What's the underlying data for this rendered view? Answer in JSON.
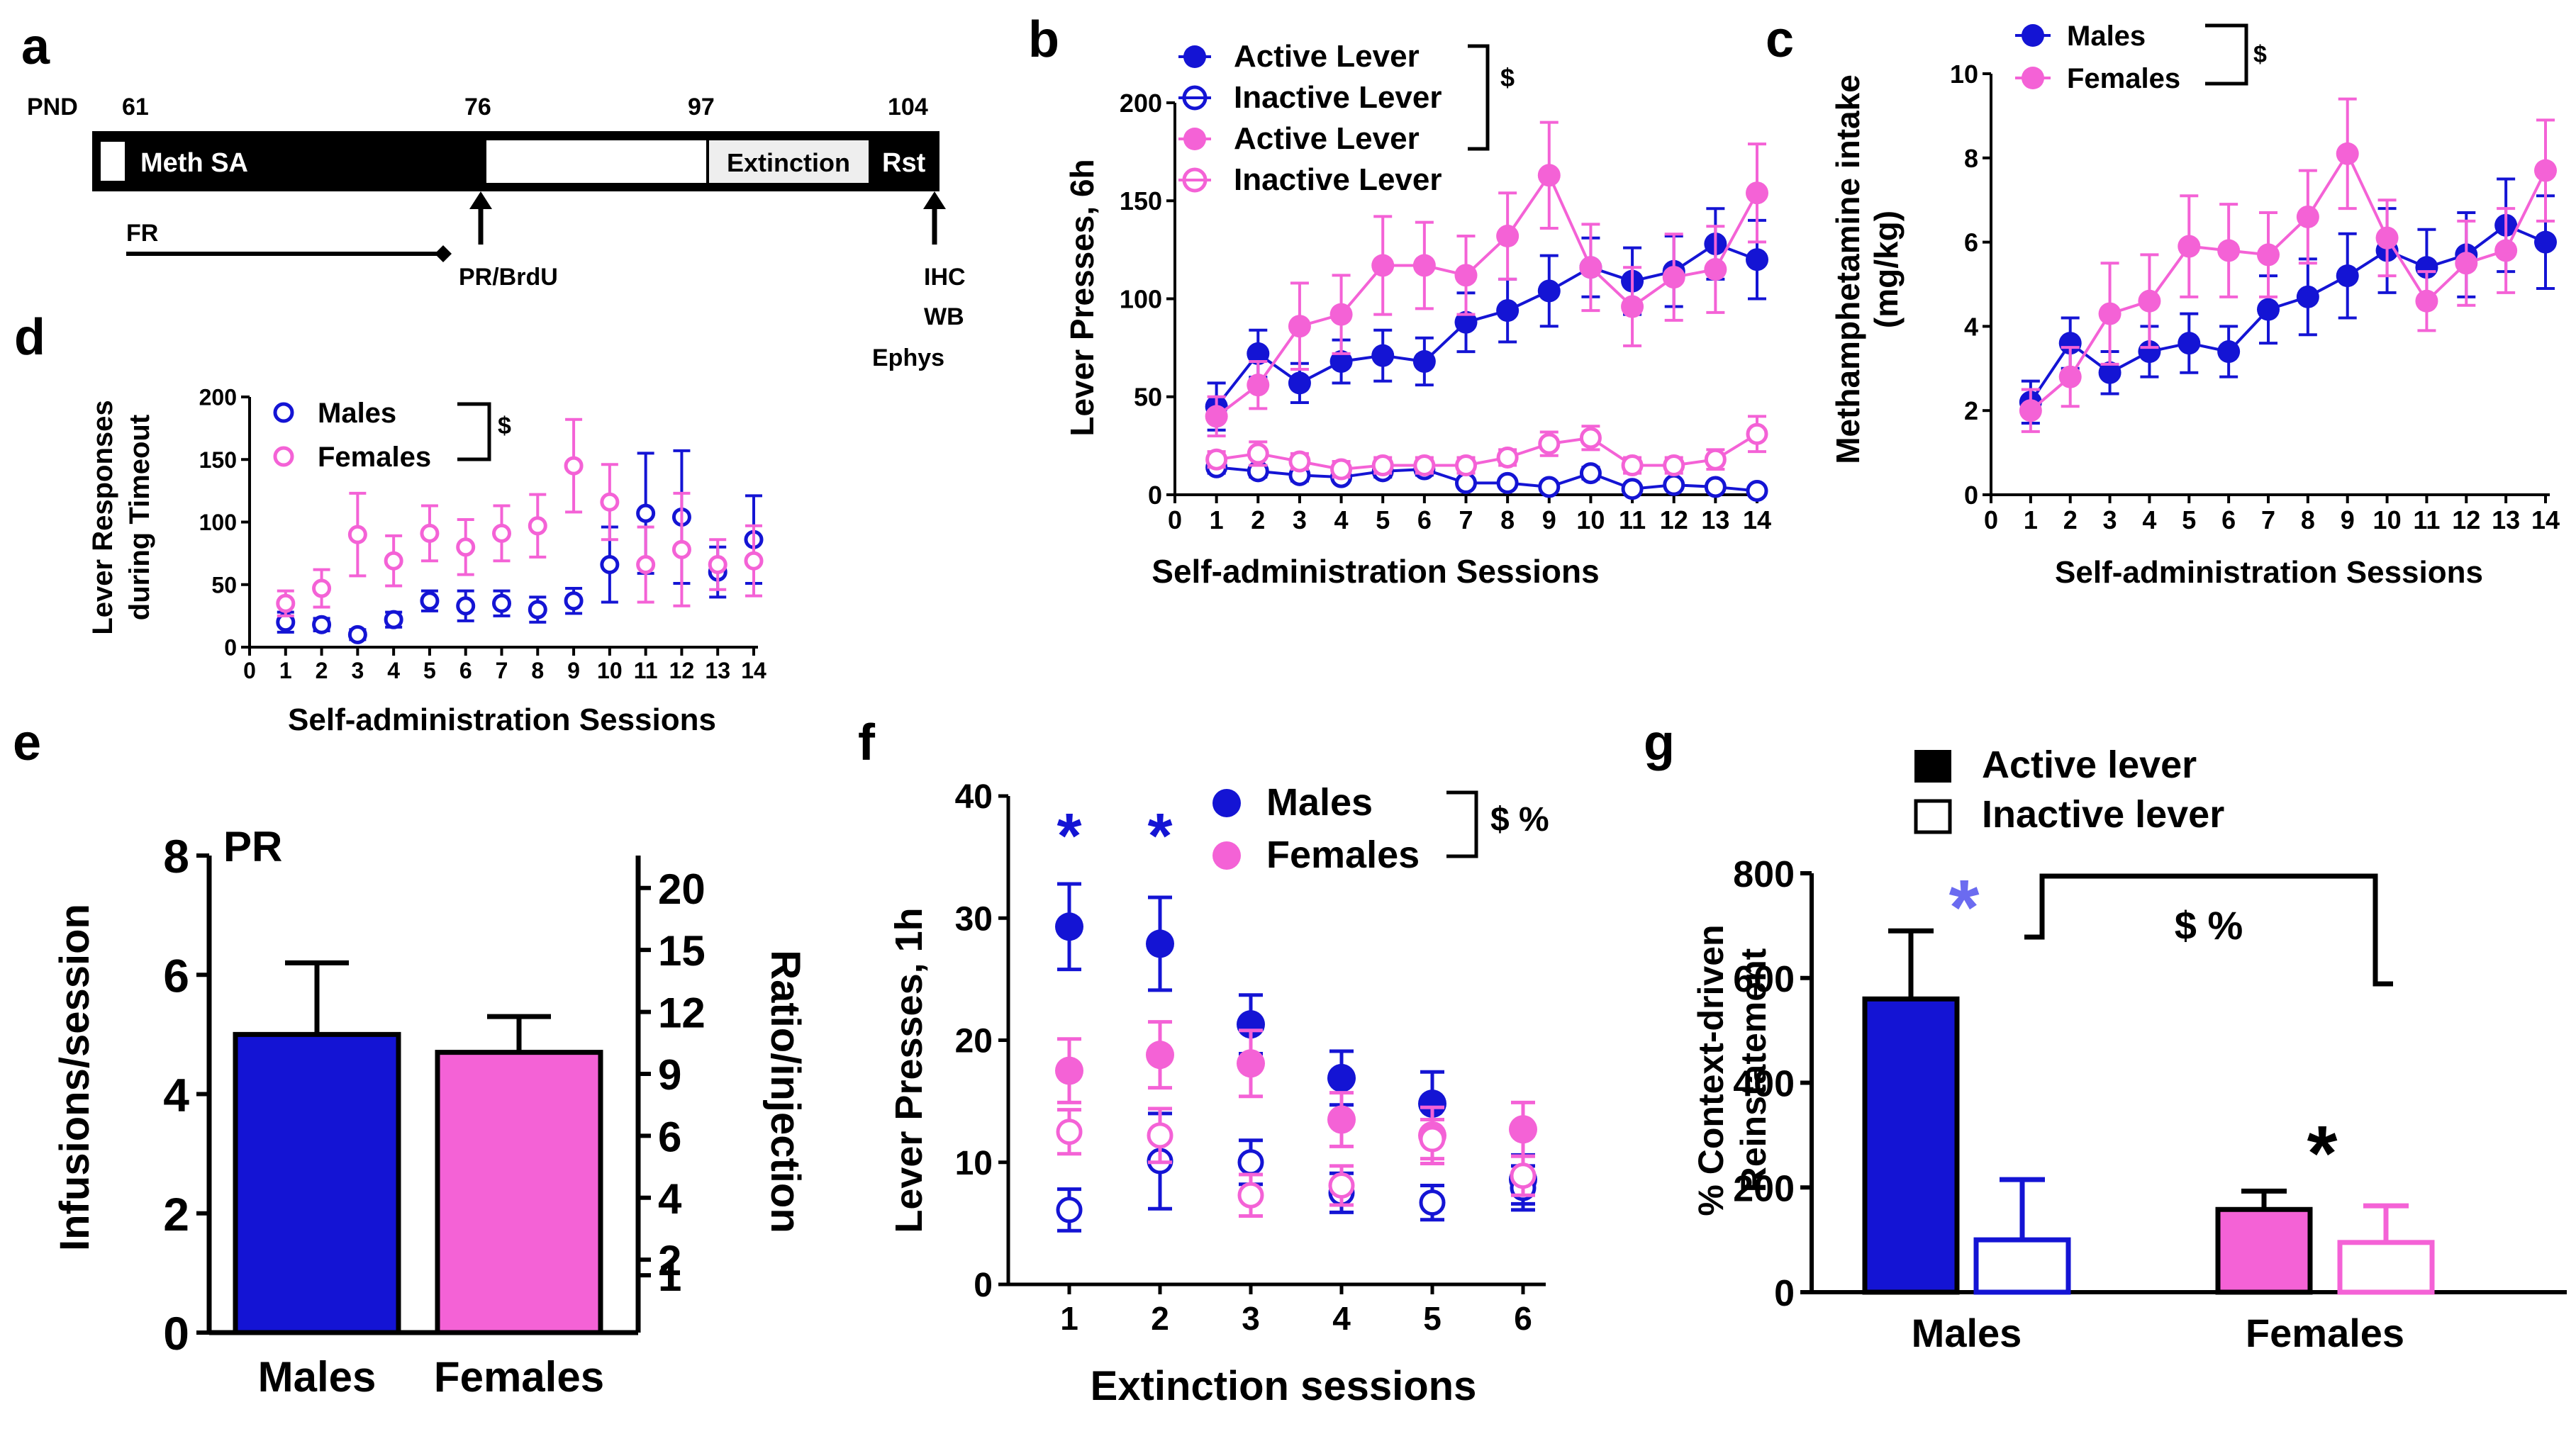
{
  "colors": {
    "male": "#1414d4",
    "female": "#f462d6",
    "black": "#000000",
    "white": "#ffffff"
  },
  "panels": {
    "a": "a",
    "b": "b",
    "c": "c",
    "d": "d",
    "e": "e",
    "f": "f",
    "g": "g"
  },
  "timeline": {
    "pnd_label": "PND",
    "ticks": [
      "61",
      "76",
      "97",
      "104"
    ],
    "bar_labels": {
      "meth_sa": "Meth SA",
      "extinction": "Extinction",
      "rst": "Rst"
    },
    "fr_label": "FR",
    "pr_label": "PR/BrdU",
    "end_labels": [
      "IHC",
      "WB",
      "Ephys"
    ]
  },
  "chart_data": [
    {
      "panel": "b",
      "type": "line",
      "ylabel": "Lever Presses, 6h",
      "xlabel": "Self-administration Sessions",
      "xlim": [
        0,
        14
      ],
      "ylim": [
        0,
        200
      ],
      "x_ticks": [
        "0",
        "1",
        "2",
        "3",
        "4",
        "5",
        "6",
        "7",
        "8",
        "9",
        "10",
        "11",
        "12",
        "13",
        "14"
      ],
      "y_ticks": [
        "0",
        "50",
        "100",
        "150",
        "200"
      ],
      "x": [
        1,
        2,
        3,
        4,
        5,
        6,
        7,
        8,
        9,
        10,
        11,
        12,
        13,
        14
      ],
      "series": [
        {
          "name": "Active Lever",
          "group": "male",
          "marker": "filled",
          "values": [
            45,
            72,
            57,
            68,
            71,
            68,
            88,
            94,
            104,
            116,
            109,
            114,
            128,
            120
          ],
          "errors": [
            12,
            12,
            10,
            11,
            13,
            12,
            15,
            16,
            18,
            15,
            17,
            18,
            18,
            20
          ]
        },
        {
          "name": "Inactive Lever",
          "group": "male",
          "marker": "open",
          "values": [
            14,
            12,
            10,
            9,
            12,
            13,
            6,
            6,
            4,
            11,
            3,
            5,
            4,
            2
          ],
          "errors": [
            3,
            3,
            3,
            2,
            3,
            3,
            2,
            2,
            2,
            3,
            2,
            2,
            2,
            1
          ]
        },
        {
          "name": "Active Lever",
          "group": "female",
          "marker": "filled",
          "values": [
            40,
            56,
            86,
            92,
            117,
            117,
            112,
            132,
            163,
            116,
            96,
            111,
            115,
            154
          ],
          "errors": [
            10,
            12,
            22,
            20,
            25,
            22,
            20,
            22,
            27,
            22,
            20,
            22,
            22,
            25
          ]
        },
        {
          "name": "Inactive Lever",
          "group": "female",
          "marker": "open",
          "values": [
            18,
            21,
            17,
            13,
            15,
            15,
            15,
            19,
            26,
            29,
            15,
            15,
            18,
            31
          ],
          "errors": [
            4,
            6,
            4,
            4,
            4,
            4,
            4,
            4,
            6,
            6,
            4,
            4,
            5,
            9
          ]
        }
      ],
      "stat": "$"
    },
    {
      "panel": "c",
      "type": "line",
      "ylabel": [
        "Methamphetamine intake",
        "(mg/kg)"
      ],
      "xlabel": "Self-administration Sessions",
      "xlim": [
        0,
        14
      ],
      "ylim": [
        0,
        10
      ],
      "x_ticks": [
        "0",
        "1",
        "2",
        "3",
        "4",
        "5",
        "6",
        "7",
        "8",
        "9",
        "10",
        "11",
        "12",
        "13",
        "14"
      ],
      "y_ticks": [
        "0",
        "2",
        "4",
        "6",
        "8",
        "10"
      ],
      "x": [
        1,
        2,
        3,
        4,
        5,
        6,
        7,
        8,
        9,
        10,
        11,
        12,
        13,
        14
      ],
      "series": [
        {
          "name": "Males",
          "group": "male",
          "marker": "filled",
          "values": [
            2.2,
            3.6,
            2.9,
            3.4,
            3.6,
            3.4,
            4.4,
            4.7,
            5.2,
            5.8,
            5.4,
            5.7,
            6.4,
            6.0
          ],
          "errors": [
            0.5,
            0.6,
            0.5,
            0.6,
            0.7,
            0.6,
            0.8,
            0.9,
            1.0,
            1.0,
            0.9,
            1.0,
            1.1,
            1.1
          ]
        },
        {
          "name": "Females",
          "group": "female",
          "marker": "filled",
          "values": [
            2.0,
            2.8,
            4.3,
            4.6,
            5.9,
            5.8,
            5.7,
            6.6,
            8.1,
            6.1,
            4.6,
            5.5,
            5.8,
            7.7
          ],
          "errors": [
            0.5,
            0.7,
            1.2,
            1.1,
            1.2,
            1.1,
            1.0,
            1.1,
            1.3,
            0.9,
            0.7,
            1.0,
            1.0,
            1.2
          ]
        }
      ],
      "stat": "$"
    },
    {
      "panel": "d",
      "type": "scatter",
      "ylabel": [
        "Lever Responses",
        "during Timeout"
      ],
      "xlabel": "Self-administration Sessions",
      "xlim": [
        0,
        14
      ],
      "ylim": [
        0,
        200
      ],
      "x_ticks": [
        "0",
        "1",
        "2",
        "3",
        "4",
        "5",
        "6",
        "7",
        "8",
        "9",
        "10",
        "11",
        "12",
        "13",
        "14"
      ],
      "y_ticks": [
        "0",
        "50",
        "100",
        "150",
        "200"
      ],
      "x": [
        1,
        2,
        3,
        4,
        5,
        6,
        7,
        8,
        9,
        10,
        11,
        12,
        13,
        14
      ],
      "series": [
        {
          "name": "Males",
          "group": "male",
          "marker": "open",
          "values": [
            20,
            18,
            10,
            22,
            37,
            33,
            35,
            30,
            37,
            66,
            107,
            104,
            60,
            86
          ],
          "errors": [
            8,
            5,
            4,
            6,
            8,
            12,
            10,
            10,
            10,
            30,
            48,
            53,
            20,
            35
          ]
        },
        {
          "name": "Females",
          "group": "female",
          "marker": "open",
          "values": [
            35,
            47,
            90,
            69,
            91,
            80,
            91,
            97,
            145,
            116,
            66,
            78,
            66,
            69
          ],
          "errors": [
            10,
            15,
            33,
            20,
            22,
            22,
            22,
            25,
            37,
            30,
            30,
            45,
            20,
            28
          ]
        }
      ],
      "stat": "$"
    },
    {
      "panel": "e",
      "type": "bar",
      "title": "PR",
      "ylabel": "Infusions/session",
      "ylabel_right": "Ratio/injection",
      "ylim": [
        0,
        8
      ],
      "y_ticks": [
        "0",
        "2",
        "4",
        "6",
        "8"
      ],
      "right_ticks": [
        "1",
        "2",
        "4",
        "6",
        "9",
        "12",
        "15",
        "20"
      ],
      "categories": [
        "Males",
        "Females"
      ],
      "values": [
        5.0,
        4.7
      ],
      "errors": [
        1.2,
        0.6
      ]
    },
    {
      "panel": "f",
      "type": "scatter",
      "ylabel": "Lever Presses, 1h",
      "xlabel": "Extinction sessions",
      "ylim": [
        0,
        40
      ],
      "x_ticks": [
        "1",
        "2",
        "3",
        "4",
        "5",
        "6"
      ],
      "y_ticks": [
        "0",
        "10",
        "20",
        "30",
        "40"
      ],
      "x": [
        1,
        2,
        3,
        4,
        5,
        6
      ],
      "series": [
        {
          "name": "Males",
          "group": "male",
          "marker": "filled",
          "values": [
            29.3,
            27.9,
            21.3,
            16.9,
            14.8,
            8.6
          ],
          "errors": [
            3.5,
            3.8,
            2.4,
            2.2,
            2.6,
            2.0
          ]
        },
        {
          "name": "Females",
          "group": "female",
          "marker": "filled",
          "values": [
            17.5,
            18.8,
            18.1,
            13.5,
            12.2,
            12.7
          ],
          "errors": [
            2.6,
            2.7,
            2.7,
            2.2,
            2.3,
            2.2
          ]
        },
        {
          "name": "Males inactive",
          "group": "male",
          "marker": "open",
          "legend": false,
          "values": [
            6.1,
            10.1,
            10.0,
            7.5,
            6.7,
            7.9
          ],
          "errors": [
            1.7,
            3.9,
            1.8,
            1.6,
            1.4,
            1.8
          ]
        },
        {
          "name": "Females inactive",
          "group": "female",
          "marker": "open",
          "legend": false,
          "values": [
            12.5,
            12.2,
            7.3,
            8.1,
            11.9,
            8.9
          ],
          "errors": [
            1.8,
            2.2,
            1.7,
            1.6,
            1.6,
            1.6
          ]
        }
      ],
      "significance": [
        "*",
        "*"
      ],
      "stat": "$ %"
    },
    {
      "panel": "g",
      "type": "bar",
      "ylabel": [
        "% Context-driven",
        "Reinstatement"
      ],
      "ylim": [
        0,
        800
      ],
      "y_ticks": [
        "0",
        "200",
        "400",
        "600",
        "800"
      ],
      "categories": [
        "Males",
        "Females"
      ],
      "legend": [
        "Active lever",
        "Inactive lever"
      ],
      "series": [
        {
          "name": "Active lever",
          "values": [
            560,
            158
          ],
          "errors": [
            130,
            35
          ]
        },
        {
          "name": "Inactive lever",
          "values": [
            100,
            95
          ],
          "errors": [
            115,
            70
          ]
        }
      ],
      "significance": [
        "*",
        "*"
      ],
      "stat": "$ %"
    }
  ]
}
